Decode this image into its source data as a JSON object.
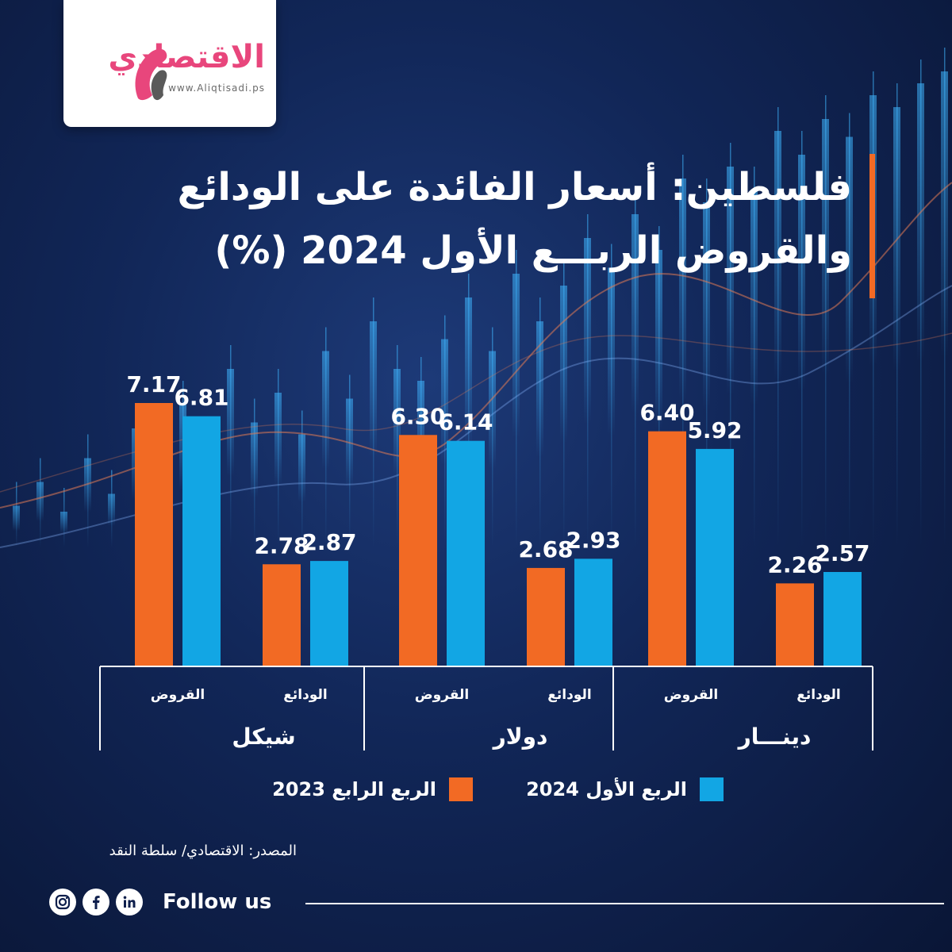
{
  "brand": {
    "name": "الاقتصادي",
    "url": "www.Aliqtisadi.ps"
  },
  "title": {
    "line1": "فلسطين: أسعار الفائدة على الودائع",
    "line2": "والقروض الربـــع الأول 2024 (%)"
  },
  "colors": {
    "q4_2023": "#f26a24",
    "q1_2024": "#12a6e4",
    "background": "#112657"
  },
  "chart_data": {
    "type": "bar",
    "direction": "rtl",
    "groups": [
      {
        "label": "شيكل",
        "categories": [
          "القروض",
          "الودائع"
        ]
      },
      {
        "label": "دولار",
        "categories": [
          "القروض",
          "الودائع"
        ]
      },
      {
        "label": "دينـــار",
        "categories": [
          "القروض",
          "الودائع"
        ]
      }
    ],
    "categories": [
      "شيكل - القروض",
      "شيكل - الودائع",
      "دولار - القروض",
      "دولار - الودائع",
      "دينـــار - القروض",
      "دينـــار - الودائع"
    ],
    "series": [
      {
        "name": "الربع الرابع 2023",
        "color": "#f26a24",
        "values": [
          7.17,
          2.78,
          6.3,
          2.68,
          6.4,
          2.26
        ],
        "labels": [
          "7.17",
          "2.78",
          "6.30",
          "2.68",
          "6.40",
          "2.26"
        ]
      },
      {
        "name": "الربع الأول 2024",
        "color": "#12a6e4",
        "values": [
          6.81,
          2.87,
          6.14,
          2.93,
          5.92,
          2.57
        ],
        "labels": [
          "6.81",
          "2.87",
          "6.14",
          "2.93",
          "5.92",
          "2.57"
        ]
      }
    ],
    "ylim": [
      0,
      7.5
    ],
    "grid": false,
    "legend": "bottom"
  },
  "legend": {
    "q1_2024": "الربع الأول 2024",
    "q4_2023": "الربع الرابع 2023"
  },
  "source": "المصدر: الاقتصادي/ سلطة النقد",
  "footer": {
    "follow_label": "Follow us",
    "icons": [
      "instagram-icon",
      "facebook-icon",
      "linkedin-icon"
    ]
  }
}
